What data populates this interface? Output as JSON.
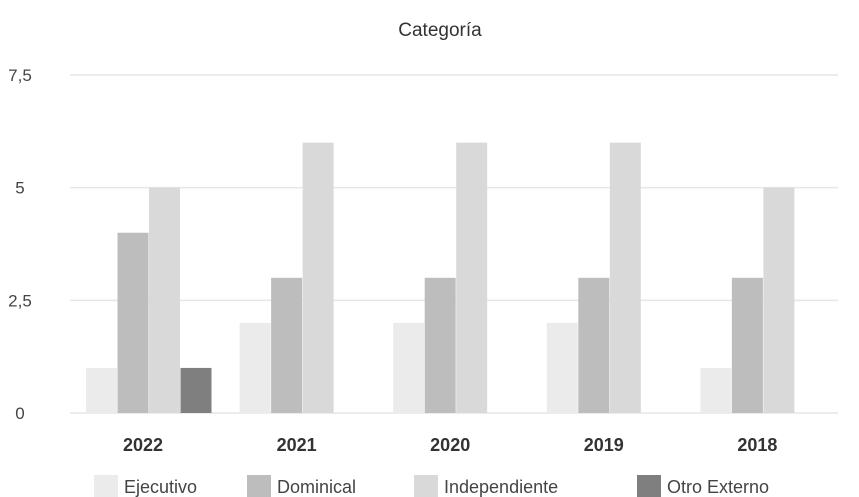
{
  "chart_data": {
    "type": "bar",
    "title": "Categoría",
    "xlabel": "",
    "ylabel": "",
    "categories": [
      "2022",
      "2021",
      "2020",
      "2019",
      "2018"
    ],
    "ylim": [
      0,
      7.5
    ],
    "yticks": [
      0,
      2.5,
      5,
      7.5
    ],
    "ytick_labels": [
      "0",
      "2,5",
      "5",
      "7,5"
    ],
    "grid": true,
    "legend_position": "bottom",
    "series": [
      {
        "name": "Ejecutivo",
        "color": "#ebebeb",
        "values": [
          1,
          2,
          2,
          2,
          1
        ]
      },
      {
        "name": "Dominical",
        "color": "#bdbdbd",
        "values": [
          4,
          3,
          3,
          3,
          3
        ]
      },
      {
        "name": "Independiente",
        "color": "#d9d9d9",
        "values": [
          5,
          6,
          6,
          6,
          5
        ]
      },
      {
        "name": "Otro Externo",
        "color": "#7f7f7f",
        "values": [
          1,
          0,
          0,
          0,
          0
        ]
      }
    ]
  }
}
